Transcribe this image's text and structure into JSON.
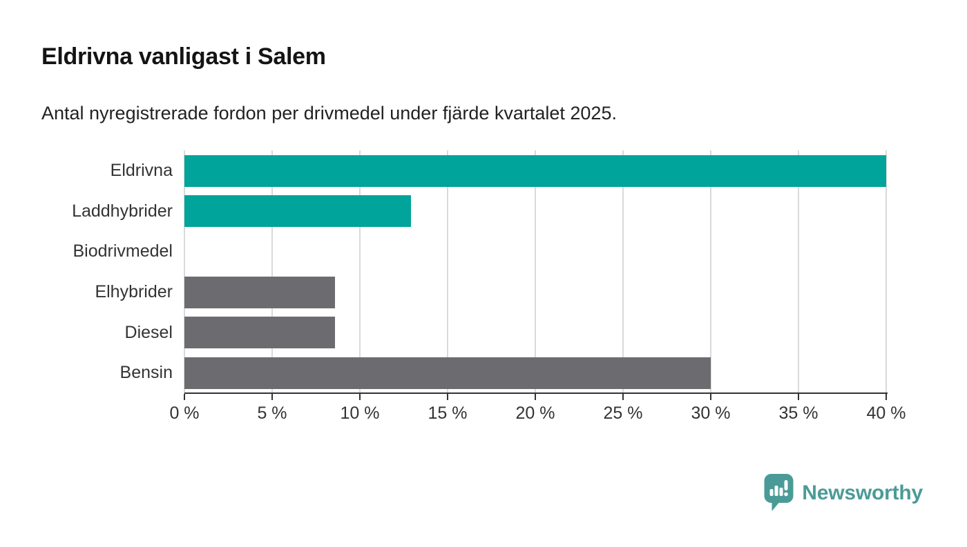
{
  "header": {
    "title": "Eldrivna vanligast i Salem",
    "subtitle": "Antal nyregistrerade fordon per drivmedel under fjärde kvartalet 2025."
  },
  "chart_data": {
    "type": "bar",
    "orientation": "horizontal",
    "title": "Eldrivna vanligast i Salem",
    "subtitle": "Antal nyregistrerade fordon per drivmedel under fjärde kvartalet 2025.",
    "categories": [
      "Eldrivna",
      "Laddhybrider",
      "Biodrivmedel",
      "Elhybrider",
      "Diesel",
      "Bensin"
    ],
    "values": [
      40,
      12.9,
      0,
      8.6,
      8.6,
      30
    ],
    "unit": "%",
    "bar_colors": [
      "#00a49b",
      "#00a49b",
      "#6c6c70",
      "#6c6c70",
      "#6c6c70",
      "#6c6c70"
    ],
    "xlabel": "",
    "ylabel": "",
    "xlim": [
      0,
      40
    ],
    "x_ticks": [
      0,
      5,
      10,
      15,
      20,
      25,
      30,
      35,
      40
    ],
    "x_tick_labels": [
      "0 %",
      "5 %",
      "10 %",
      "15 %",
      "20 %",
      "25 %",
      "30 %",
      "35 %",
      "40 %"
    ],
    "grid": "vertical",
    "legend": false
  },
  "footer": {
    "brand": "Newsworthy"
  },
  "colors": {
    "teal": "#00a49b",
    "gray": "#6c6c70",
    "grid": "#d9d9d9",
    "axis": "#333333",
    "text": "#333333",
    "logo_teal": "#4a9b97"
  }
}
